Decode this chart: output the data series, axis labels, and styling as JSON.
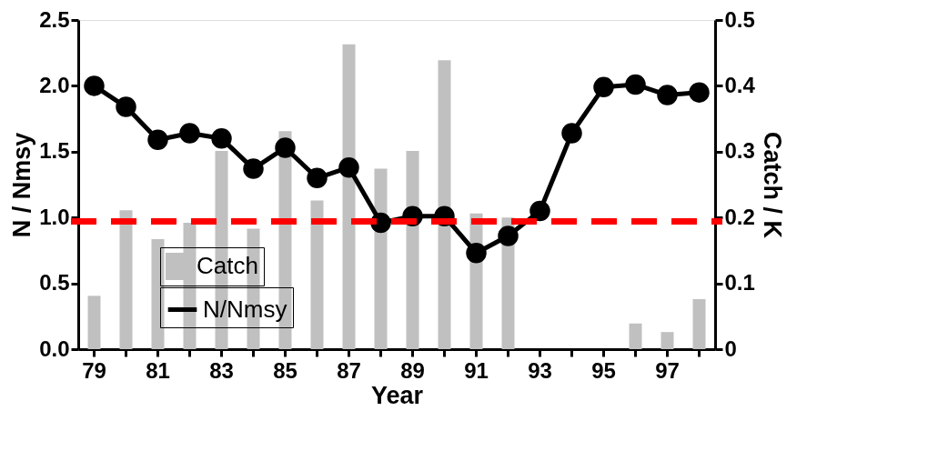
{
  "chart_data": {
    "type": "bar",
    "xlabel": "Year",
    "ylabel": "N / Nmsy",
    "y2label": "Catch / K",
    "categories": [
      "79",
      null,
      "81",
      null,
      "83",
      null,
      "85",
      null,
      "87",
      null,
      "89",
      null,
      "91",
      null,
      "93",
      null,
      "95",
      null,
      "97",
      null
    ],
    "series": [
      {
        "name": "Catch",
        "type": "bar",
        "axis": "y2",
        "color": "#c0c0c0",
        "values": [
          0.081,
          0.211,
          0.167,
          0.192,
          0.301,
          0.183,
          0.331,
          0.226,
          0.463,
          0.274,
          0.301,
          0.439,
          0.206,
          0.2,
          0,
          0,
          0,
          0.039,
          0.026,
          0.076
        ]
      },
      {
        "name": "N/Nmsy",
        "type": "line",
        "color": "#000000",
        "marker": "circle",
        "values": [
          2.0,
          1.84,
          1.59,
          1.64,
          1.6,
          1.37,
          1.53,
          1.3,
          1.38,
          0.96,
          1.01,
          1.01,
          0.73,
          0.86,
          1.05,
          1.64,
          1.99,
          2.01,
          1.93,
          1.95
        ]
      }
    ],
    "ylim": [
      0,
      2.5
    ],
    "yticks": [
      {
        "value": 0,
        "label": "0.0"
      },
      0.5,
      {
        "value": 1,
        "label": "1.0"
      },
      1.5,
      {
        "value": 2,
        "label": "2.0"
      },
      2.5
    ],
    "y2lim": [
      0,
      0.5
    ],
    "y2ticks": [
      0,
      0.1,
      0.2,
      0.3,
      0.4,
      0.5
    ],
    "ref_lines": [
      {
        "axis": "y",
        "value": 0.97,
        "color": "#ff0000",
        "line_style": "dashed"
      }
    ],
    "legend": "bottom left",
    "grid": false
  }
}
